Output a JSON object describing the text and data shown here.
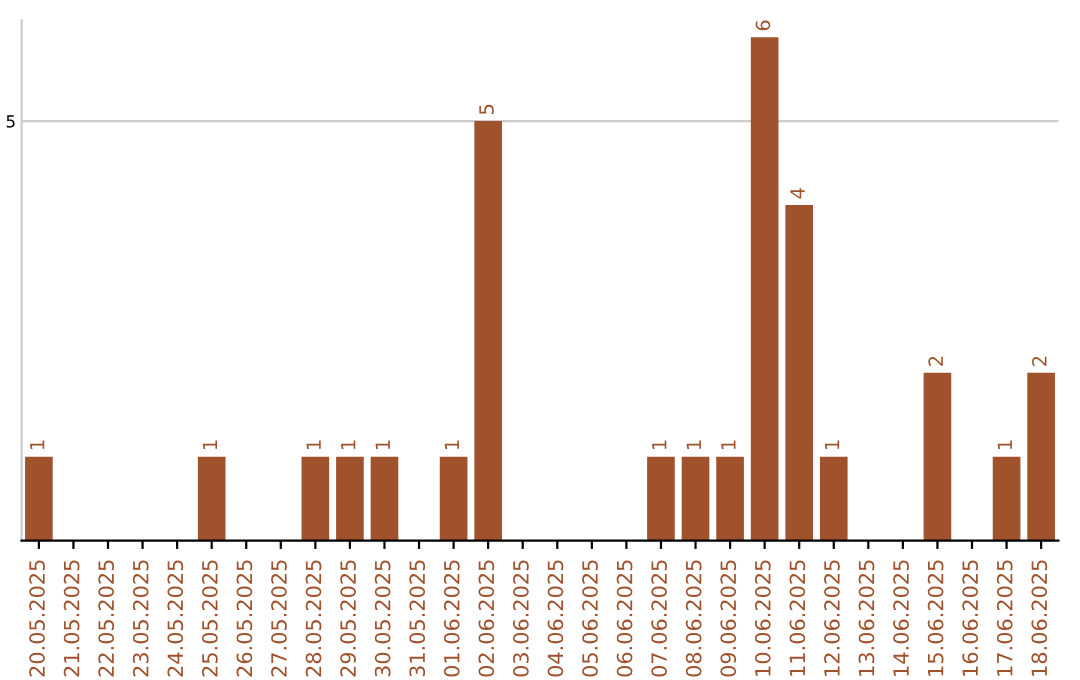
{
  "chart_data": {
    "type": "bar",
    "categories": [
      "20.05.2025",
      "21.05.2025",
      "22.05.2025",
      "23.05.2025",
      "24.05.2025",
      "25.05.2025",
      "26.05.2025",
      "27.05.2025",
      "28.05.2025",
      "29.05.2025",
      "30.05.2025",
      "31.05.2025",
      "01.06.2025",
      "02.06.2025",
      "03.06.2025",
      "04.06.2025",
      "05.06.2025",
      "06.06.2025",
      "07.06.2025",
      "08.06.2025",
      "09.06.2025",
      "10.06.2025",
      "11.06.2025",
      "12.06.2025",
      "13.06.2025",
      "14.06.2025",
      "15.06.2025",
      "16.06.2025",
      "17.06.2025",
      "18.06.2025"
    ],
    "values": [
      1,
      0,
      0,
      0,
      0,
      1,
      0,
      0,
      1,
      1,
      1,
      0,
      1,
      5,
      0,
      0,
      0,
      0,
      1,
      1,
      1,
      6,
      4,
      1,
      0,
      0,
      2,
      0,
      1,
      2
    ],
    "value_labels": [
      "1",
      null,
      null,
      null,
      null,
      "1",
      null,
      null,
      "1",
      "1",
      "1",
      null,
      "1",
      "5",
      null,
      null,
      null,
      null,
      "1",
      "1",
      "1",
      "6",
      "4",
      "1",
      null,
      null,
      "2",
      null,
      "1",
      "2"
    ],
    "color": "#a0522d",
    "ylim": [
      0,
      6.2
    ],
    "yticks": [
      5
    ],
    "grid": "y"
  }
}
